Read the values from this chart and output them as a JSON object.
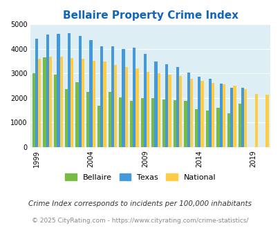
{
  "title": "Bellaire Property Crime Index",
  "years": [
    1999,
    2000,
    2001,
    2002,
    2003,
    2004,
    2005,
    2006,
    2007,
    2008,
    2009,
    2010,
    2011,
    2012,
    2013,
    2014,
    2015,
    2016,
    2017,
    2018,
    2019,
    2020
  ],
  "bellaire": [
    3000,
    3650,
    2950,
    2350,
    2650,
    2250,
    1700,
    2250,
    2030,
    1870,
    2000,
    2000,
    1950,
    1900,
    1870,
    1540,
    1500,
    1600,
    1390,
    1780,
    0,
    0
  ],
  "texas": [
    4420,
    4580,
    4620,
    4640,
    4520,
    4350,
    4100,
    4120,
    4000,
    4060,
    3800,
    3480,
    3370,
    3260,
    3050,
    2860,
    2790,
    2590,
    2420,
    2410,
    0,
    0
  ],
  "national": [
    3600,
    3680,
    3680,
    3640,
    3610,
    3510,
    3490,
    3360,
    3260,
    3220,
    3060,
    3000,
    2960,
    2890,
    2780,
    2690,
    2610,
    2560,
    2490,
    2360,
    2160,
    2150
  ],
  "bar_colors": {
    "bellaire": "#77bb44",
    "texas": "#4499dd",
    "national": "#ffcc44"
  },
  "bg_color": "#ddeef5",
  "ylim": [
    0,
    5000
  ],
  "yticks": [
    0,
    1000,
    2000,
    3000,
    4000,
    5000
  ],
  "x_tick_years": [
    1999,
    2004,
    2009,
    2014,
    2019
  ],
  "title_color": "#1166bb",
  "legend_labels": [
    "Bellaire",
    "Texas",
    "National"
  ],
  "footnote1": "Crime Index corresponds to incidents per 100,000 inhabitants",
  "footnote2": "© 2025 CityRating.com - https://www.cityrating.com/crime-statistics/",
  "bar_width": 0.27
}
